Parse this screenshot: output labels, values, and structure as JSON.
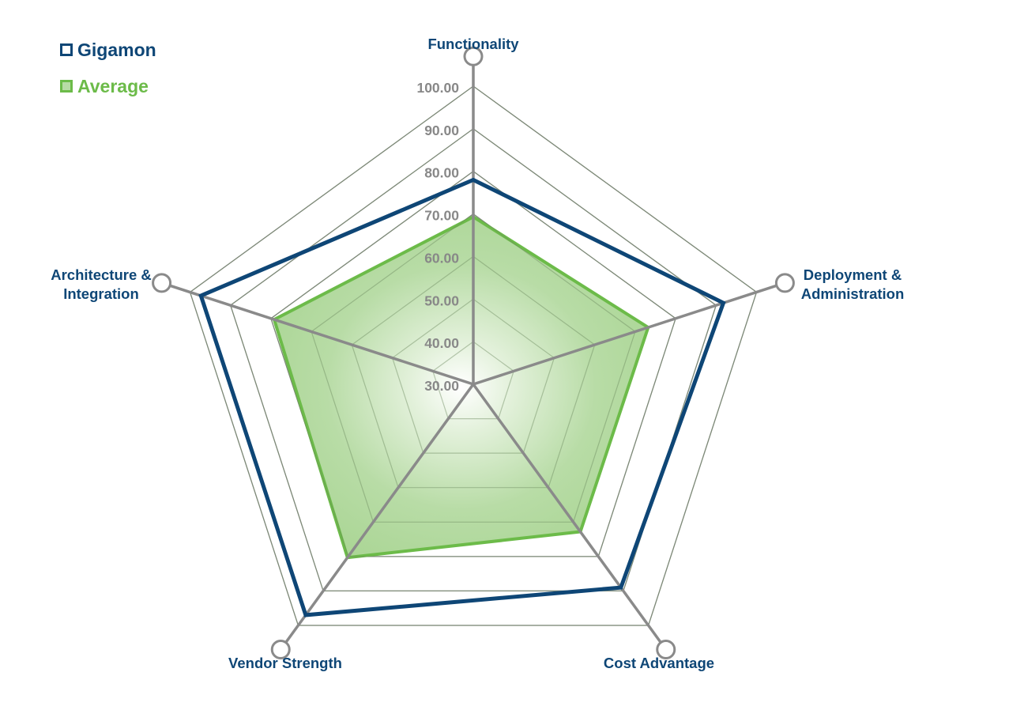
{
  "legend": {
    "items": [
      {
        "label": "Gigamon",
        "color": "#0e4676"
      },
      {
        "label": "Average",
        "color": "#6cbb49"
      }
    ]
  },
  "chart_data": {
    "type": "radar",
    "axes": [
      "Functionality",
      "Deployment &\nAdministration",
      "Cost Advantage",
      "Vendor Strength",
      "Architecture &\nIntegration"
    ],
    "tick_labels": [
      "30.00",
      "40.00",
      "50.00",
      "60.00",
      "70.00",
      "80.00",
      "90.00",
      "100.00"
    ],
    "range": [
      30,
      100
    ],
    "outer_ring_value": 100,
    "series": [
      {
        "name": "Gigamon",
        "values": [
          78.0,
          91.8,
          89.0,
          97.0,
          97.3
        ],
        "color": "#0e4676",
        "filled": false
      },
      {
        "name": "Average",
        "values": [
          69.3,
          73.2,
          72.8,
          80.3,
          79.2
        ],
        "color": "#6cbb49",
        "filled": true
      }
    ],
    "grid": true,
    "legend_position": "top-left"
  }
}
